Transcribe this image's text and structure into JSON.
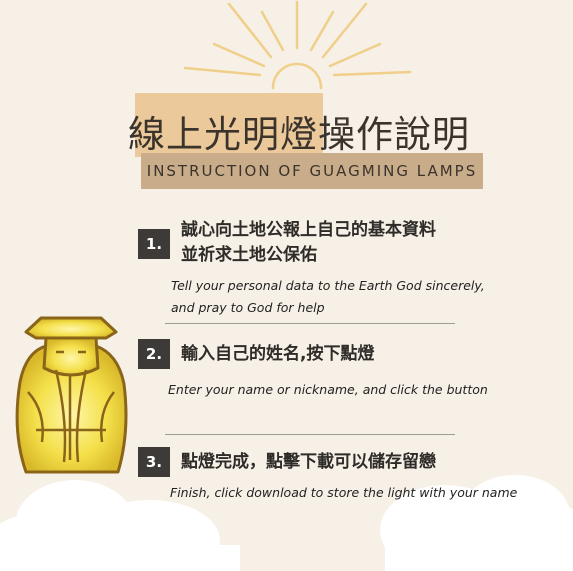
{
  "header": {
    "title": "線上光明燈操作說明",
    "subtitle": "INSTRUCTION OF GUAGMING LAMPS"
  },
  "steps": [
    {
      "number": "1.",
      "zh_line1": "誠心向土地公報上自己的基本資料",
      "zh_line2": "並祈求土地公保佑",
      "en_line1": "Tell your personal data to the Earth God sincerely,",
      "en_line2": "and pray to God for help"
    },
    {
      "number": "2.",
      "zh_line1": "輸入自己的姓名,按下點燈",
      "en_line1": "Enter your name or nickname, and click the button"
    },
    {
      "number": "3.",
      "zh_line1": "點燈完成，點擊下載可以儲存留戀",
      "en_line1": "Finish, click download to store the light with your name"
    }
  ],
  "colors": {
    "background": "#f6f0e6",
    "title_highlight": "#ecc99a",
    "subtitle_bar": "#c9ac8a",
    "number_box": "#3d3a37",
    "sun": "#f0cf8a",
    "god_glow": "#f4e04a"
  },
  "icons": [
    "sun-icon",
    "earth-god-icon",
    "cloud-icon"
  ]
}
